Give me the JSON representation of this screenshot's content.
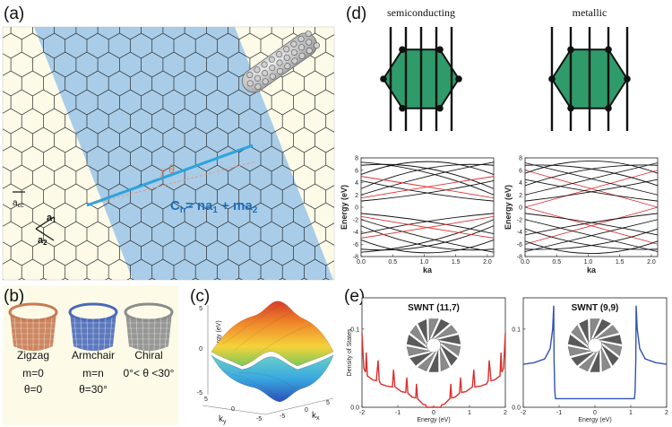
{
  "panel_labels": {
    "a": "(a)",
    "b": "(b)",
    "c": "(c)",
    "d": "(d)",
    "e": "(e)"
  },
  "panel_a": {
    "acc_label": "a",
    "acc_sub": "cc",
    "a1_label": "a",
    "a1_sub": "1",
    "a2_label": "a",
    "a2_sub": "2",
    "theta_label": "θ",
    "equation": {
      "c": "C",
      "h": "h",
      "mid": "= na",
      "one": "1",
      "plus": " + ma",
      "two": "2"
    },
    "colors": {
      "band": "#a9cde8",
      "chiral_vector": "#2ea3dc",
      "equation": "#1e6fb8"
    }
  },
  "panel_b": {
    "types": [
      {
        "name": "Zigzag",
        "cond1": "m=0",
        "cond2": "θ=0",
        "color": "#c77a52"
      },
      {
        "name": "Armchair",
        "cond1": "m=n",
        "cond2": "θ=30°",
        "color": "#4a69b8"
      },
      {
        "name": "Chiral",
        "cond1": "0°< θ <30°",
        "cond2": "",
        "color": "#8c8c8c"
      }
    ]
  },
  "panel_c": {
    "zlabel": "Energy (eV)",
    "zticks": [
      "-5",
      "0",
      "5"
    ],
    "ky_label": "k",
    "ky_sub": "y",
    "kx_label": "k",
    "kx_sub": "x",
    "xticks": [
      "5",
      "0",
      "-5",
      "-5",
      "0",
      "5"
    ]
  },
  "panel_d": {
    "titles": [
      "semiconducting",
      "metallic"
    ],
    "hex_color": "#2f9b6a",
    "chart_data": [
      {
        "type": "line",
        "title": "semiconducting",
        "xlabel": "ka",
        "ylabel": "Energy  (eV)",
        "xlim": [
          0,
          2.1
        ],
        "ylim": [
          -8,
          8
        ],
        "xticks": [
          "0.0",
          "0.5",
          "1.0",
          "1.5",
          "2.0"
        ],
        "yticks": [
          "8",
          "6",
          "4",
          "2",
          "0",
          "-2",
          "-4",
          "-6",
          "-8"
        ],
        "series": [
          {
            "color": "#111111",
            "values": [
              [
                0,
                2.0
              ],
              [
                1.05,
                5.0
              ],
              [
                2.1,
                7.3
              ]
            ]
          },
          {
            "color": "#111111",
            "values": [
              [
                0,
                7.3
              ],
              [
                1.05,
                5.6
              ],
              [
                2.1,
                2.0
              ]
            ]
          },
          {
            "color": "#111111",
            "values": [
              [
                0,
                3.0
              ],
              [
                1.05,
                6.3
              ],
              [
                2.1,
                6.8
              ]
            ]
          },
          {
            "color": "#111111",
            "values": [
              [
                0,
                6.8
              ],
              [
                1.05,
                6.3
              ],
              [
                2.1,
                3.0
              ]
            ]
          },
          {
            "color": "#111111",
            "values": [
              [
                0,
                1.0
              ],
              [
                1.05,
                2.3
              ],
              [
                2.1,
                4.3
              ]
            ]
          },
          {
            "color": "#111111",
            "values": [
              [
                0,
                4.3
              ],
              [
                1.05,
                2.3
              ],
              [
                2.1,
                1.0
              ]
            ]
          },
          {
            "color": "#111111",
            "values": [
              [
                0,
                5.3
              ],
              [
                1.05,
                7.4
              ],
              [
                2.1,
                5.3
              ]
            ]
          },
          {
            "color": "#e03030",
            "values": [
              [
                0,
                1.5
              ],
              [
                1.05,
                3.3
              ],
              [
                2.1,
                5.0
              ]
            ]
          },
          {
            "color": "#e03030",
            "values": [
              [
                0,
                5.0
              ],
              [
                1.05,
                3.3
              ],
              [
                2.1,
                1.5
              ]
            ]
          },
          {
            "color": "#111111",
            "values": [
              [
                0,
                -2.0
              ],
              [
                1.05,
                -5.0
              ],
              [
                2.1,
                -7.3
              ]
            ]
          },
          {
            "color": "#111111",
            "values": [
              [
                0,
                -7.3
              ],
              [
                1.05,
                -5.6
              ],
              [
                2.1,
                -2.0
              ]
            ]
          },
          {
            "color": "#111111",
            "values": [
              [
                0,
                -3.0
              ],
              [
                1.05,
                -6.3
              ],
              [
                2.1,
                -6.8
              ]
            ]
          },
          {
            "color": "#111111",
            "values": [
              [
                0,
                -6.8
              ],
              [
                1.05,
                -6.3
              ],
              [
                2.1,
                -3.0
              ]
            ]
          },
          {
            "color": "#111111",
            "values": [
              [
                0,
                -1.0
              ],
              [
                1.05,
                -2.3
              ],
              [
                2.1,
                -4.3
              ]
            ]
          },
          {
            "color": "#111111",
            "values": [
              [
                0,
                -4.3
              ],
              [
                1.05,
                -2.3
              ],
              [
                2.1,
                -1.0
              ]
            ]
          },
          {
            "color": "#111111",
            "values": [
              [
                0,
                -5.3
              ],
              [
                1.05,
                -7.4
              ],
              [
                2.1,
                -5.3
              ]
            ]
          },
          {
            "color": "#e03030",
            "values": [
              [
                0,
                -1.5
              ],
              [
                1.05,
                -3.3
              ],
              [
                2.1,
                -5.0
              ]
            ]
          },
          {
            "color": "#e03030",
            "values": [
              [
                0,
                -5.0
              ],
              [
                1.05,
                -3.3
              ],
              [
                2.1,
                -1.5
              ]
            ]
          }
        ]
      },
      {
        "type": "line",
        "title": "metallic",
        "xlabel": "ka",
        "ylabel": "Energy  (eV)",
        "xlim": [
          0,
          2.1
        ],
        "ylim": [
          -8,
          8
        ],
        "xticks": [
          "0.0",
          "0.5",
          "1.0",
          "1.5",
          "2.0"
        ],
        "yticks": [
          "8",
          "6",
          "4",
          "2",
          "0",
          "-2",
          "-4",
          "-6",
          "-8"
        ],
        "series": [
          {
            "color": "#e03030",
            "values": [
              [
                0,
                0.0
              ],
              [
                1.05,
                3.0
              ],
              [
                2.1,
                6.0
              ]
            ]
          },
          {
            "color": "#e03030",
            "values": [
              [
                0,
                6.0
              ],
              [
                1.05,
                3.0
              ],
              [
                2.1,
                0.0
              ]
            ]
          },
          {
            "color": "#e03030",
            "values": [
              [
                0,
                0.0
              ],
              [
                1.05,
                -3.0
              ],
              [
                2.1,
                -6.0
              ]
            ]
          },
          {
            "color": "#e03030",
            "values": [
              [
                0,
                -6.0
              ],
              [
                1.05,
                -3.0
              ],
              [
                2.1,
                0.0
              ]
            ]
          },
          {
            "color": "#111111",
            "values": [
              [
                0,
                2.0
              ],
              [
                1.05,
                4.6
              ],
              [
                2.1,
                7.2
              ]
            ]
          },
          {
            "color": "#111111",
            "values": [
              [
                0,
                7.2
              ],
              [
                1.05,
                4.6
              ],
              [
                2.1,
                2.0
              ]
            ]
          },
          {
            "color": "#111111",
            "values": [
              [
                0,
                3.5
              ],
              [
                1.05,
                6.2
              ],
              [
                2.1,
                6.8
              ]
            ]
          },
          {
            "color": "#111111",
            "values": [
              [
                0,
                6.8
              ],
              [
                1.05,
                6.2
              ],
              [
                2.1,
                3.5
              ]
            ]
          },
          {
            "color": "#111111",
            "values": [
              [
                0,
                1.0
              ],
              [
                1.05,
                2.5
              ],
              [
                2.1,
                4.5
              ]
            ]
          },
          {
            "color": "#111111",
            "values": [
              [
                0,
                4.5
              ],
              [
                1.05,
                2.5
              ],
              [
                2.1,
                1.0
              ]
            ]
          },
          {
            "color": "#111111",
            "values": [
              [
                0,
                5.5
              ],
              [
                1.05,
                7.5
              ],
              [
                2.1,
                5.5
              ]
            ]
          },
          {
            "color": "#111111",
            "values": [
              [
                0,
                -2.0
              ],
              [
                1.05,
                -4.6
              ],
              [
                2.1,
                -7.2
              ]
            ]
          },
          {
            "color": "#111111",
            "values": [
              [
                0,
                -7.2
              ],
              [
                1.05,
                -4.6
              ],
              [
                2.1,
                -2.0
              ]
            ]
          },
          {
            "color": "#111111",
            "values": [
              [
                0,
                -3.5
              ],
              [
                1.05,
                -6.2
              ],
              [
                2.1,
                -6.8
              ]
            ]
          },
          {
            "color": "#111111",
            "values": [
              [
                0,
                -6.8
              ],
              [
                1.05,
                -6.2
              ],
              [
                2.1,
                -3.5
              ]
            ]
          },
          {
            "color": "#111111",
            "values": [
              [
                0,
                -1.0
              ],
              [
                1.05,
                -2.5
              ],
              [
                2.1,
                -4.5
              ]
            ]
          },
          {
            "color": "#111111",
            "values": [
              [
                0,
                -4.5
              ],
              [
                1.05,
                -2.5
              ],
              [
                2.1,
                -1.0
              ]
            ]
          },
          {
            "color": "#111111",
            "values": [
              [
                0,
                -5.5
              ],
              [
                1.05,
                -7.5
              ],
              [
                2.1,
                -5.5
              ]
            ]
          }
        ]
      }
    ]
  },
  "panel_e": {
    "chart_data": [
      {
        "type": "line",
        "title": "SWNT (11,7)",
        "xlabel": "Energy (eV)",
        "ylabel": "Density of States",
        "xlim": [
          -2,
          2
        ],
        "ylim": [
          0,
          0.14
        ],
        "xticks": [
          "-2",
          "-1",
          "0",
          "1",
          "2"
        ],
        "yticks": [
          "0.1",
          "0.0"
        ],
        "color": "#dd2e2e",
        "x": [
          -2.0,
          -1.95,
          -1.9,
          -1.88,
          -1.85,
          -1.7,
          -1.6,
          -1.55,
          -1.52,
          -1.48,
          -1.3,
          -1.15,
          -1.12,
          -1.08,
          -0.9,
          -0.78,
          -0.75,
          -0.72,
          -0.6,
          -0.5,
          -0.48,
          -0.45,
          -0.3,
          -0.22,
          -0.2,
          0.2,
          0.22,
          0.3,
          0.45,
          0.48,
          0.5,
          0.6,
          0.72,
          0.75,
          0.78,
          0.9,
          1.08,
          1.12,
          1.15,
          1.3,
          1.48,
          1.52,
          1.55,
          1.6,
          1.7,
          1.85,
          1.88,
          1.9,
          1.95,
          2.0
        ],
        "y": [
          0.095,
          0.05,
          0.045,
          0.07,
          0.04,
          0.035,
          0.034,
          0.06,
          0.034,
          0.03,
          0.027,
          0.026,
          0.048,
          0.026,
          0.02,
          0.019,
          0.038,
          0.018,
          0.013,
          0.012,
          0.03,
          0.011,
          0.004,
          0.003,
          0.0,
          0.0,
          0.003,
          0.004,
          0.011,
          0.03,
          0.012,
          0.013,
          0.018,
          0.038,
          0.019,
          0.02,
          0.026,
          0.048,
          0.026,
          0.027,
          0.03,
          0.034,
          0.06,
          0.034,
          0.035,
          0.04,
          0.07,
          0.045,
          0.05,
          0.095
        ]
      },
      {
        "type": "line",
        "title": "SWNT (9,9)",
        "xlabel": "Energy (eV)",
        "ylabel": "",
        "xlim": [
          -2,
          2
        ],
        "ylim": [
          0,
          0.14
        ],
        "xticks": [
          "-2",
          "-1",
          "0",
          "1",
          "2"
        ],
        "yticks": [
          "0.1",
          "0.0"
        ],
        "color": "#3352b5",
        "x": [
          -2.0,
          -1.7,
          -1.4,
          -1.25,
          -1.18,
          -1.15,
          -1.14,
          -1.12,
          -1.1,
          1.1,
          1.12,
          1.14,
          1.15,
          1.18,
          1.25,
          1.4,
          1.7,
          2.0
        ],
        "y": [
          0.055,
          0.057,
          0.062,
          0.075,
          0.1,
          0.13,
          0.06,
          0.02,
          0.011,
          0.011,
          0.02,
          0.06,
          0.13,
          0.1,
          0.075,
          0.062,
          0.057,
          0.055
        ]
      }
    ]
  }
}
